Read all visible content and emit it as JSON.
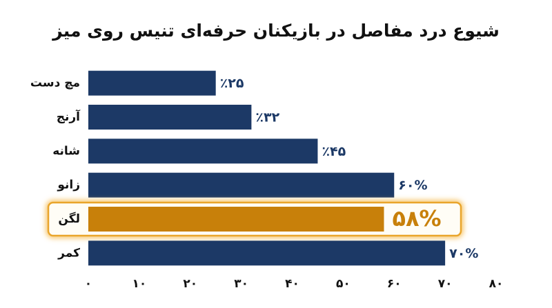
{
  "chart_data": {
    "type": "hbar",
    "title": "شیوع درد مفاصل در بازیکنان حرفه‌ای تنیس روی میز",
    "categories": [
      "مچ دست",
      "آرنج",
      "شانه",
      "زانو",
      "لگن",
      "کمر"
    ],
    "values": [
      25,
      32,
      45,
      60,
      58,
      70
    ],
    "value_labels": [
      "٪۲۵",
      "٪۳۲",
      "٪۴۵",
      "۶۰%",
      "۵۸%",
      "۷۰%"
    ],
    "color": "#1c3966",
    "colors": [
      "#1c3966",
      "#1c3966",
      "#1c3966",
      "#1c3966",
      "#c8800a",
      "#1c3966"
    ],
    "xlim": [
      0,
      80
    ],
    "xticks": [
      {
        "value": 0,
        "label": "۰"
      },
      {
        "value": 10,
        "label": "۱۰"
      },
      {
        "value": 20,
        "label": "۲۰"
      },
      {
        "value": 30,
        "label": "۳۰"
      },
      {
        "value": 40,
        "label": "۴۰"
      },
      {
        "value": 50,
        "label": "۵۰"
      },
      {
        "value": 60,
        "label": "۶۰"
      },
      {
        "value": 70,
        "label": "۷۰"
      },
      {
        "value": 80,
        "label": "۸۰"
      }
    ]
  }
}
